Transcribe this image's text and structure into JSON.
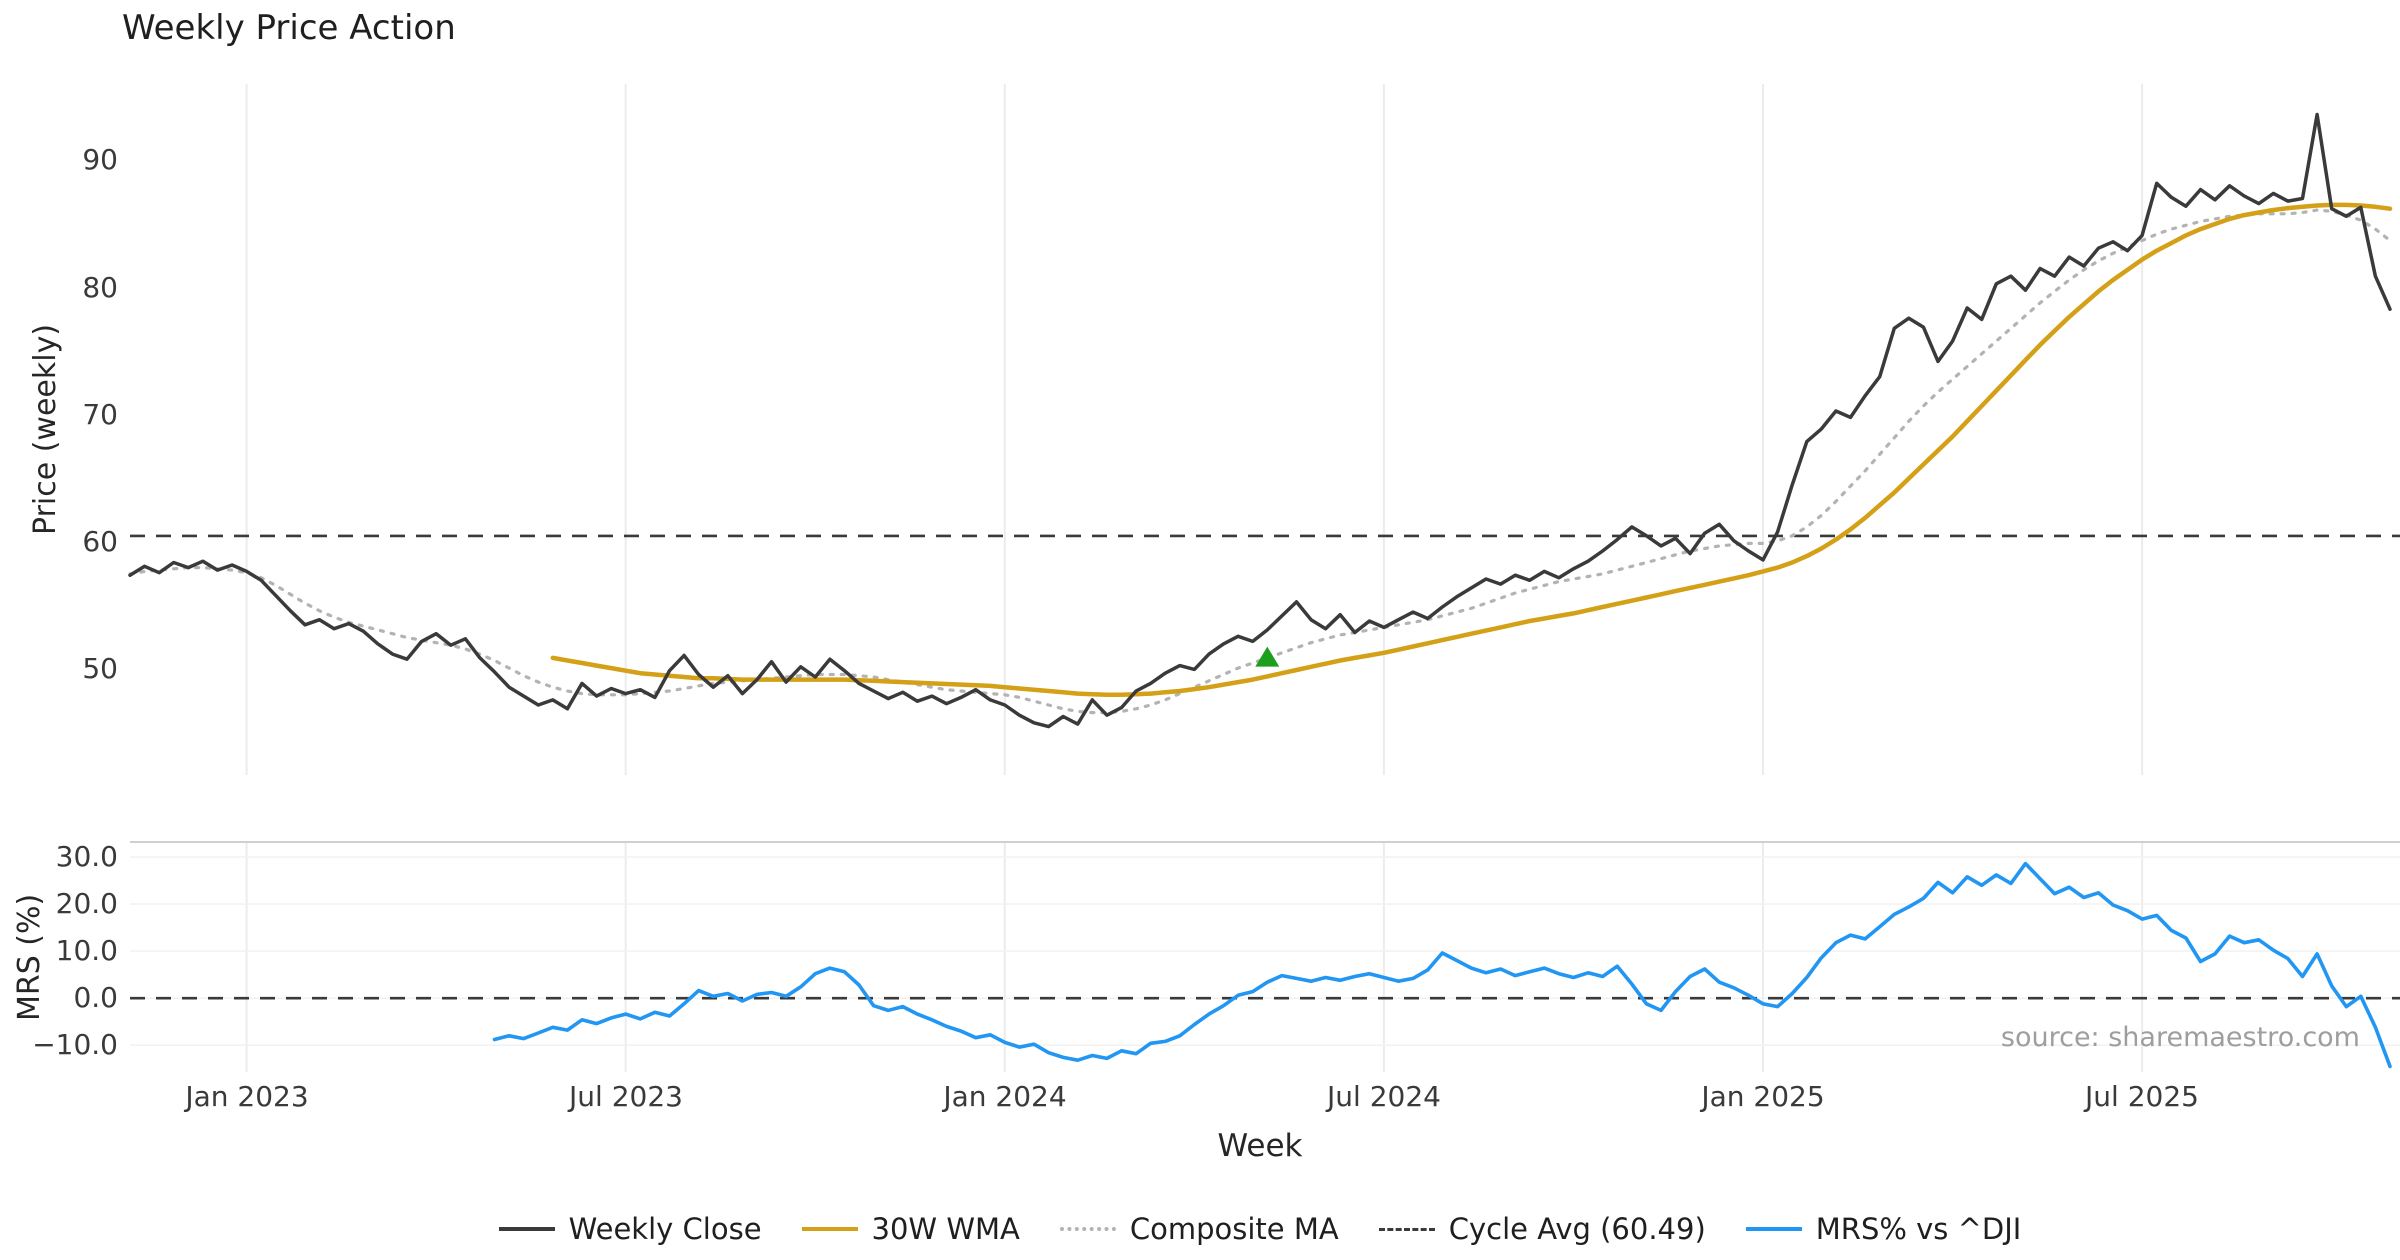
{
  "chart_data": {
    "type": "line",
    "title": "Weekly Price Action",
    "xlabel": "Week",
    "source_note": "source: sharemaestro.com",
    "n_points": 156,
    "x_tick_labels": [
      "Jan 2023",
      "Jul 2023",
      "Jan 2024",
      "Jul 2024",
      "Jan 2025",
      "Jul 2025"
    ],
    "x_tick_indices": [
      8,
      34,
      60,
      86,
      112,
      138
    ],
    "grid": "vertical-light",
    "legend_position": "bottom-center",
    "top_panel": {
      "ylabel": "Price (weekly)",
      "ylim": [
        41.7,
        96.0
      ],
      "yticks": [
        {
          "label": "50",
          "value": 50
        },
        {
          "label": "60",
          "value": 60
        },
        {
          "label": "70",
          "value": 70
        },
        {
          "label": "80",
          "value": 80
        },
        {
          "label": "90",
          "value": 90
        }
      ],
      "cycle_avg": 60.49,
      "cycle_avg_color": "#3a3a3a",
      "marker": {
        "type": "triangle-up",
        "color": "#1e9e1e",
        "index": 78,
        "value": 51.0
      },
      "series": [
        {
          "name": "Weekly Close",
          "color": "#3a3a3a",
          "width": 3.5,
          "style": "solid",
          "values": [
            57.4,
            58.1,
            57.6,
            58.4,
            58.0,
            58.5,
            57.8,
            58.2,
            57.7,
            57.0,
            55.8,
            54.6,
            53.5,
            53.9,
            53.2,
            53.6,
            53.0,
            52.0,
            51.2,
            50.8,
            52.2,
            52.8,
            51.9,
            52.4,
            50.9,
            49.8,
            48.6,
            47.9,
            47.2,
            47.6,
            46.9,
            48.9,
            47.9,
            48.5,
            48.1,
            48.4,
            47.8,
            49.9,
            51.1,
            49.6,
            48.6,
            49.5,
            48.1,
            49.2,
            50.6,
            49.0,
            50.2,
            49.4,
            50.8,
            49.9,
            48.9,
            48.3,
            47.7,
            48.2,
            47.5,
            47.9,
            47.3,
            47.8,
            48.4,
            47.6,
            47.2,
            46.4,
            45.8,
            45.5,
            46.3,
            45.7,
            47.6,
            46.4,
            47.0,
            48.3,
            48.9,
            49.7,
            50.3,
            50.0,
            51.2,
            52.0,
            52.6,
            52.2,
            53.1,
            54.2,
            55.3,
            53.9,
            53.2,
            54.3,
            52.9,
            53.8,
            53.3,
            53.9,
            54.5,
            54.0,
            54.9,
            55.7,
            56.4,
            57.1,
            56.7,
            57.4,
            57.0,
            57.7,
            57.2,
            57.9,
            58.5,
            59.3,
            60.2,
            61.2,
            60.5,
            59.7,
            60.3,
            59.1,
            60.7,
            61.4,
            60.1,
            59.3,
            58.6,
            60.8,
            64.5,
            67.9,
            68.9,
            70.3,
            69.8,
            71.5,
            73.0,
            76.8,
            77.6,
            76.9,
            74.2,
            75.8,
            78.4,
            77.5,
            80.3,
            80.9,
            79.8,
            81.5,
            80.9,
            82.4,
            81.7,
            83.1,
            83.6,
            82.9,
            84.1,
            88.2,
            87.1,
            86.4,
            87.7,
            86.9,
            88.0,
            87.2,
            86.6,
            87.4,
            86.8,
            87.0,
            93.6,
            86.2,
            85.6,
            86.3,
            80.9,
            78.3
          ]
        },
        {
          "name": "30W WMA",
          "color": "#d4a017",
          "width": 4.5,
          "style": "solid",
          "values": [
            null,
            null,
            null,
            null,
            null,
            null,
            null,
            null,
            null,
            null,
            null,
            null,
            null,
            null,
            null,
            null,
            null,
            null,
            null,
            null,
            null,
            null,
            null,
            null,
            null,
            null,
            null,
            null,
            null,
            50.9,
            50.7,
            50.5,
            50.3,
            50.1,
            49.9,
            49.7,
            49.6,
            49.5,
            49.4,
            49.3,
            49.3,
            49.25,
            49.2,
            49.2,
            49.2,
            49.2,
            49.2,
            49.2,
            49.2,
            49.2,
            49.15,
            49.1,
            49.05,
            49.0,
            48.95,
            48.9,
            48.85,
            48.8,
            48.75,
            48.7,
            48.6,
            48.5,
            48.4,
            48.3,
            48.2,
            48.1,
            48.05,
            48.0,
            48.0,
            48.05,
            48.1,
            48.2,
            48.3,
            48.45,
            48.6,
            48.8,
            49.0,
            49.2,
            49.45,
            49.7,
            49.95,
            50.2,
            50.45,
            50.7,
            50.9,
            51.1,
            51.3,
            51.55,
            51.8,
            52.05,
            52.3,
            52.55,
            52.8,
            53.05,
            53.3,
            53.55,
            53.8,
            54.0,
            54.2,
            54.4,
            54.65,
            54.9,
            55.15,
            55.4,
            55.65,
            55.9,
            56.15,
            56.4,
            56.65,
            56.9,
            57.15,
            57.4,
            57.7,
            58.0,
            58.4,
            58.9,
            59.5,
            60.2,
            61.0,
            61.9,
            62.9,
            63.9,
            65.0,
            66.1,
            67.2,
            68.3,
            69.5,
            70.7,
            71.9,
            73.1,
            74.3,
            75.5,
            76.6,
            77.7,
            78.7,
            79.7,
            80.6,
            81.4,
            82.2,
            82.9,
            83.5,
            84.1,
            84.6,
            85.0,
            85.4,
            85.7,
            85.9,
            86.1,
            86.25,
            86.35,
            86.45,
            86.5,
            86.5,
            86.45,
            86.35,
            86.2
          ]
        },
        {
          "name": "Composite MA",
          "color": "#b3b3b3",
          "width": 3.2,
          "style": "dotted",
          "values": [
            57.5,
            57.7,
            57.8,
            57.9,
            58.0,
            58.0,
            57.9,
            57.8,
            57.6,
            57.2,
            56.6,
            55.9,
            55.2,
            54.6,
            54.1,
            53.7,
            53.4,
            53.1,
            52.8,
            52.5,
            52.3,
            52.1,
            51.9,
            51.6,
            51.2,
            50.7,
            50.1,
            49.5,
            49.0,
            48.6,
            48.3,
            48.1,
            48.0,
            48.0,
            48.0,
            48.1,
            48.2,
            48.3,
            48.5,
            48.7,
            48.9,
            49.0,
            49.1,
            49.2,
            49.3,
            49.4,
            49.5,
            49.6,
            49.6,
            49.6,
            49.5,
            49.4,
            49.2,
            49.0,
            48.8,
            48.6,
            48.4,
            48.3,
            48.2,
            48.1,
            48.0,
            47.8,
            47.5,
            47.2,
            46.9,
            46.7,
            46.6,
            46.6,
            46.7,
            46.9,
            47.2,
            47.6,
            48.1,
            48.6,
            49.1,
            49.6,
            50.1,
            50.5,
            50.9,
            51.3,
            51.7,
            52.1,
            52.4,
            52.7,
            52.9,
            53.1,
            53.3,
            53.5,
            53.7,
            53.9,
            54.2,
            54.5,
            54.8,
            55.2,
            55.6,
            56.0,
            56.3,
            56.6,
            56.9,
            57.1,
            57.3,
            57.5,
            57.8,
            58.1,
            58.4,
            58.7,
            59.0,
            59.3,
            59.5,
            59.7,
            59.8,
            59.9,
            59.9,
            60.1,
            60.5,
            61.2,
            62.1,
            63.2,
            64.4,
            65.6,
            66.9,
            68.2,
            69.5,
            70.7,
            71.8,
            72.8,
            73.8,
            74.8,
            75.8,
            76.8,
            77.8,
            78.8,
            79.7,
            80.6,
            81.4,
            82.1,
            82.7,
            83.2,
            83.7,
            84.2,
            84.6,
            84.9,
            85.2,
            85.4,
            85.6,
            85.7,
            85.8,
            85.8,
            85.8,
            85.9,
            86.1,
            86.0,
            85.7,
            85.3,
            84.6,
            83.7
          ]
        }
      ]
    },
    "bottom_panel": {
      "ylabel": "MRS (%)",
      "ylim": [
        -15.7,
        33.2
      ],
      "yticks": [
        {
          "label": "30.0",
          "value": 30
        },
        {
          "label": "20.0",
          "value": 20
        },
        {
          "label": "10.0",
          "value": 10
        },
        {
          "label": "0.0",
          "value": 0
        },
        {
          "label": "−10.0",
          "value": -10
        }
      ],
      "zero_dash": 0.0,
      "zero_dash_color": "#3a3a3a",
      "series": [
        {
          "name": "MRS% vs ^DJI",
          "color": "#2196f3",
          "width": 3.6,
          "style": "solid",
          "values": [
            null,
            null,
            null,
            null,
            null,
            null,
            null,
            null,
            null,
            null,
            null,
            null,
            null,
            null,
            null,
            null,
            null,
            null,
            null,
            null,
            null,
            null,
            null,
            null,
            null,
            -8.8,
            -8.0,
            -8.6,
            -7.4,
            -6.2,
            -6.8,
            -4.6,
            -5.4,
            -4.2,
            -3.4,
            -4.4,
            -3.0,
            -3.8,
            -1.2,
            1.6,
            0.4,
            1.0,
            -0.6,
            0.8,
            1.2,
            0.4,
            2.4,
            5.2,
            6.4,
            5.6,
            2.8,
            -1.6,
            -2.6,
            -1.8,
            -3.4,
            -4.6,
            -6.0,
            -7.0,
            -8.4,
            -7.8,
            -9.4,
            -10.4,
            -9.8,
            -11.6,
            -12.6,
            -13.2,
            -12.2,
            -12.8,
            -11.2,
            -11.8,
            -9.6,
            -9.2,
            -8.0,
            -5.6,
            -3.4,
            -1.6,
            0.6,
            1.4,
            3.4,
            4.8,
            4.2,
            3.6,
            4.4,
            3.8,
            4.6,
            5.2,
            4.4,
            3.6,
            4.2,
            6.0,
            9.6,
            8.0,
            6.4,
            5.4,
            6.2,
            4.8,
            5.6,
            6.4,
            5.2,
            4.4,
            5.4,
            4.6,
            6.8,
            3.0,
            -1.2,
            -2.6,
            1.4,
            4.6,
            6.2,
            3.4,
            2.2,
            0.6,
            -1.2,
            -1.8,
            1.0,
            4.4,
            8.6,
            11.8,
            13.4,
            12.6,
            15.2,
            17.8,
            19.4,
            21.2,
            24.6,
            22.4,
            25.8,
            24.0,
            26.2,
            24.4,
            28.6,
            25.4,
            22.2,
            23.6,
            21.4,
            22.4,
            19.8,
            18.6,
            16.8,
            17.6,
            14.4,
            12.8,
            7.8,
            9.4,
            13.2,
            11.8,
            12.4,
            10.2,
            8.4,
            4.6,
            9.4,
            2.6,
            -1.8,
            0.4,
            -6.2,
            -14.5
          ]
        }
      ]
    },
    "legend": [
      {
        "label": "Weekly Close",
        "color": "#3a3a3a",
        "style": "solid"
      },
      {
        "label": "30W WMA",
        "color": "#d4a017",
        "style": "solid"
      },
      {
        "label": "Composite MA",
        "color": "#b3b3b3",
        "style": "dotted"
      },
      {
        "label": "Cycle Avg (60.49)",
        "color": "#3a3a3a",
        "style": "dashed"
      },
      {
        "label": "MRS% vs ^DJI",
        "color": "#2196f3",
        "style": "solid"
      }
    ]
  }
}
